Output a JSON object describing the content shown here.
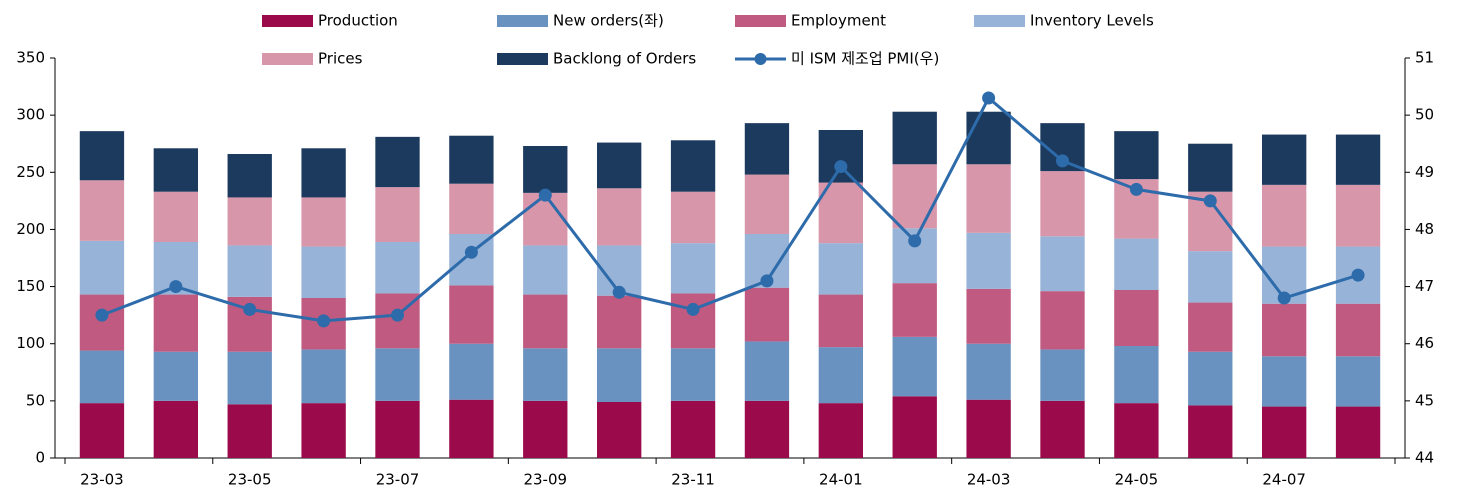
{
  "chart_data": {
    "type": "bar",
    "stacked": true,
    "categories": [
      "23-03",
      null,
      "23-05",
      null,
      "23-07",
      null,
      "23-09",
      null,
      "23-11",
      null,
      "24-01",
      null,
      "24-03",
      null,
      "24-05",
      null,
      "24-07",
      null
    ],
    "series": [
      {
        "name": "Production",
        "color": "#9b0a4a",
        "values": [
          48,
          50,
          47,
          48,
          50,
          51,
          50,
          49,
          50,
          50,
          48,
          54,
          51,
          50,
          48,
          46,
          45,
          45
        ]
      },
      {
        "name": "New orders(좌)",
        "color": "#6a92c0",
        "values": [
          46,
          43,
          46,
          47,
          46,
          49,
          46,
          47,
          46,
          52,
          49,
          52,
          49,
          45,
          50,
          47,
          44,
          44
        ]
      },
      {
        "name": "Employment",
        "color": "#c05a80",
        "values": [
          49,
          50,
          48,
          45,
          48,
          51,
          47,
          46,
          48,
          47,
          46,
          47,
          48,
          51,
          49,
          43,
          46,
          46
        ]
      },
      {
        "name": "Inventory Levels",
        "color": "#98b3d8",
        "values": [
          47,
          46,
          45,
          45,
          45,
          45,
          43,
          44,
          44,
          47,
          45,
          48,
          49,
          48,
          45,
          45,
          50,
          50
        ]
      },
      {
        "name": "Prices",
        "color": "#d896ab",
        "values": [
          53,
          44,
          42,
          43,
          48,
          44,
          46,
          50,
          45,
          52,
          53,
          56,
          60,
          57,
          52,
          52,
          54,
          54
        ]
      },
      {
        "name": "Backlong of Orders",
        "color": "#1c3a5e",
        "values": [
          43,
          38,
          38,
          43,
          44,
          42,
          41,
          40,
          45,
          45,
          46,
          46,
          46,
          42,
          42,
          42,
          44,
          44
        ]
      },
      {
        "name": "미 ISM 제조업 PMI(우)",
        "color": "#2d6bab",
        "type": "line",
        "axis": "y2",
        "values": [
          46.5,
          47.0,
          46.6,
          46.4,
          46.5,
          47.6,
          48.6,
          46.9,
          46.6,
          47.1,
          49.1,
          47.8,
          50.3,
          49.2,
          48.7,
          48.5,
          46.8,
          47.2
        ]
      }
    ],
    "ylim": [
      0,
      350
    ],
    "yticks": [
      0,
      50,
      100,
      150,
      200,
      250,
      300,
      350
    ],
    "y2lim": [
      44,
      51
    ],
    "y2ticks": [
      44,
      45,
      46,
      47,
      48,
      49,
      50,
      51
    ]
  }
}
